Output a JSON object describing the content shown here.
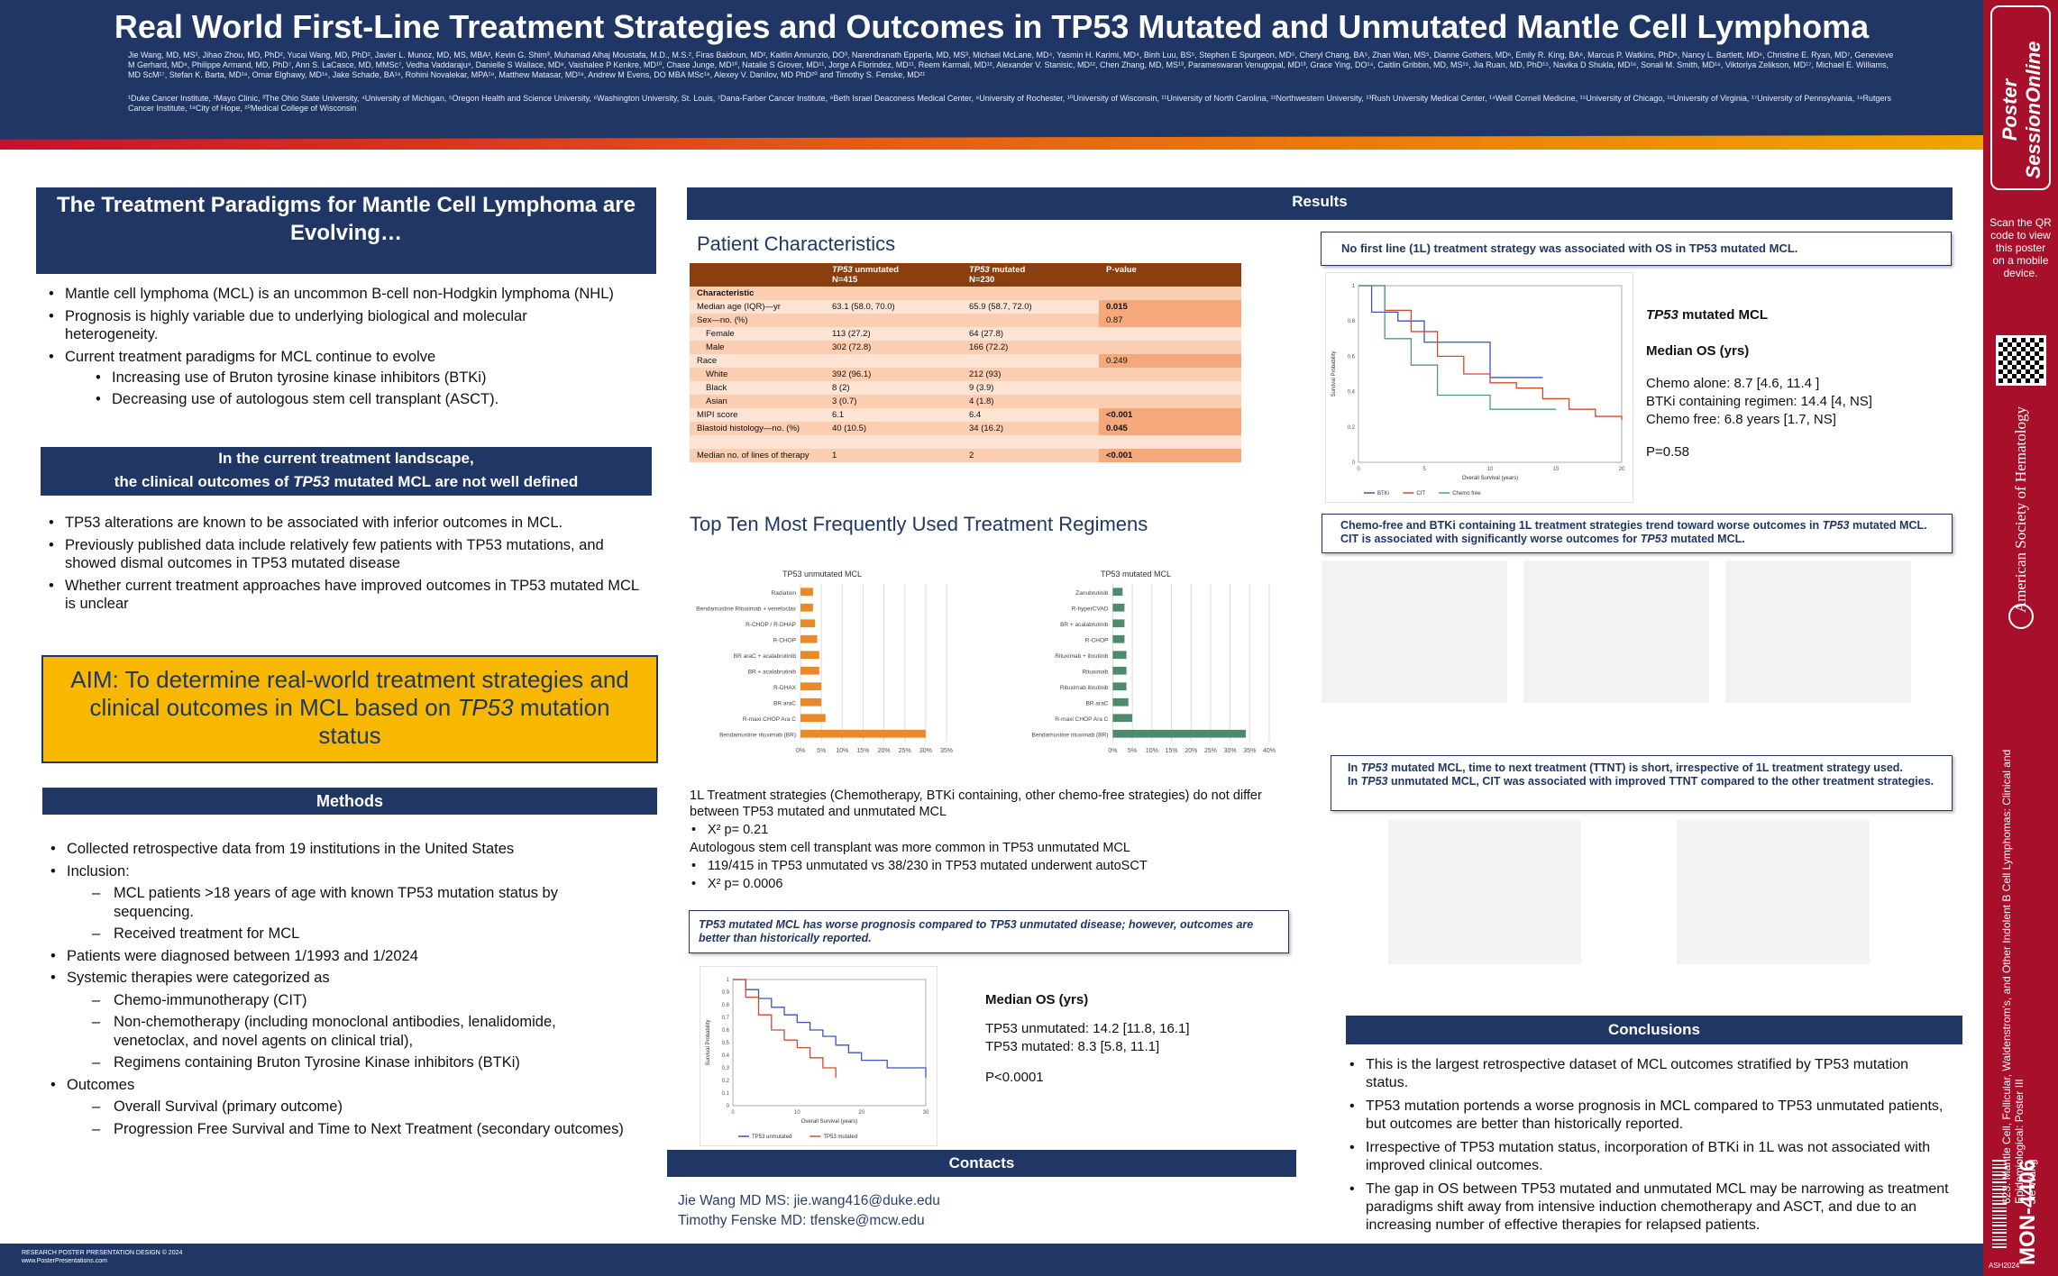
{
  "header": {
    "title": "Real World First-Line Treatment Strategies and Outcomes in TP53 Mutated and Unmutated Mantle Cell Lymphoma",
    "authors": "Jie Wang, MD, MS¹, Jihao Zhou, MD, PhD², Yucai Wang, MD, PhD², Javier L. Munoz, MD, MS, MBA², Kevin G. Shim³, Muhamad Alhaj Moustafa, M.D., M.S.², Firas Baidoun, MD², Kaitlin Annunzio, DO³, Narendranath Epperla, MD, MS³, Michael McLane, MD⁴, Yasmin H. Karimi, MD⁴, Binh Luu, BS⁵, Stephen E Spurgeon, MD⁵, Cheryl Chang, BA⁵, Zhan Wan, MS⁵, Dianne Gothers, MD⁶, Emily R. King, BA⁶, Marcus P. Watkins, PhD⁶, Nancy L. Bartlett, MD⁶, Christine E. Ryan, MD⁷, Genevieve M Gerhard, MD⁸, Philippe Armand, MD, PhD⁷, Ann S. LaCasce, MD, MMSc⁷, Vedha Vaddaraju⁹, Danielle S Wallace, MD⁹, Vaishalee P Kenkre, MD¹⁰, Chase Junge, MD¹⁰, Natalie S Grover, MD¹¹, Jorge A Florindez, MD¹¹, Reem Karmali, MD¹², Alexander V. Stanisic, MD¹², Chen Zhang, MD, MS¹³, Parameswaran Venugopal, MD¹³, Grace Ying, DO¹⁴, Caitlin Gribbin, MD, MS¹⁵, Jia Ruan, MD, PhD¹⁵, Navika D Shukla, MD¹⁶, Sonali M. Smith, MD¹⁶, Viktoriya Zelikson, MD¹⁷, Michael E. Williams, MD ScM¹⁷, Stefan K. Barta, MD¹⁸, Omar Elghawy, MD¹⁸, Jake Schade, BA¹⁹, Rohini Novalekar, MPA¹⁹, Matthew Matasar, MD¹⁹, Andrew M Evens, DO MBA MSc¹⁹, Alexey V. Danilov, MD PhD²⁰ and Timothy S. Fenske, MD²¹",
    "affiliations": "¹Duke Cancer Institute, ²Mayo Clinic, ³The Ohio State University, ⁴University of Michigan, ⁵Oregon Health and Science University, ⁶Washington University, St. Louis, ⁷Dana-Farber Cancer Institute, ⁸Beth Israel Deaconess Medical Center, ⁹University of Rochester, ¹⁰University of Wisconsin, ¹¹University of North Carolina, ¹²Northwestern University, ¹³Rush University Medical Center, ¹⁴Weill Cornell Medicine, ¹⁵University of Chicago, ¹⁶University of Virginia, ¹⁷University of Pennsylvania, ¹⁸Rutgers Cancer Institute, ¹⁹City of Hope, ²⁰Medical College of Wisconsin"
  },
  "sidebar": {
    "logo_text": "Poster SessionOnline",
    "qr_text": "Scan the QR code to view this poster on a mobile device.",
    "society": "American Society of Hematology",
    "abstract_info": "623. Mantle Cell, Follicular, Waldenstrom's, and Other Indolent B Cell Lymphomas: Clinical and Epidemiological: Poster III",
    "presenter": "Jie Wang",
    "poster_id": "MON-4406",
    "meeting": "ASH2024"
  },
  "left": {
    "paradigm_title": "The Treatment Paradigms for Mantle Cell Lymphoma are Evolving…",
    "paradigm_bullets": [
      "Mantle cell lymphoma (MCL) is an uncommon B-cell non-Hodgkin lymphoma (NHL)",
      "Prognosis is highly variable due to underlying biological and molecular heterogeneity.",
      "Current treatment paradigms for MCL continue to evolve"
    ],
    "paradigm_sub": [
      "Increasing use of Bruton tyrosine kinase inhibitors (BTKi)",
      "Decreasing use of autologous stem cell transplant (ASCT)."
    ],
    "landscape_line1": "In the current treatment landscape,",
    "landscape_line2a": "the clinical outcomes of ",
    "landscape_italic": "TP53",
    "landscape_line2b": " mutated MCL are not well defined",
    "landscape_bullets": [
      "TP53 alterations are known to be associated with inferior outcomes in MCL.",
      "Previously published data include relatively few patients with TP53 mutations, and showed dismal outcomes in TP53 mutated disease",
      "Whether current treatment approaches have improved outcomes in TP53 mutated MCL is unclear"
    ],
    "aim_a": "AIM: To determine real-world treatment strategies and clinical outcomes in MCL based on ",
    "aim_italic": "TP53",
    "aim_b": " mutation status",
    "methods_title": "Methods",
    "methods": {
      "b1": "Collected retrospective data from 19 institutions in the United States",
      "b2": "Inclusion:",
      "b2_sub1": "MCL patients >18 years of age with known TP53 mutation status by sequencing.",
      "b2_sub2": "Received treatment for MCL",
      "b3": "Patients were diagnosed between 1/1993 and 1/2024",
      "b4": "Systemic therapies were categorized as",
      "b4_sub1": "Chemo-immunotherapy (CIT)",
      "b4_sub2": "Non-chemotherapy (including monoclonal antibodies, lenalidomide, venetoclax, and novel agents on clinical trial),",
      "b4_sub3": "Regimens containing Bruton Tyrosine Kinase inhibitors (BTKi)",
      "b5": "Outcomes",
      "b5_sub1": "Overall Survival (primary outcome)",
      "b5_sub2": "Progression Free Survival and Time to Next Treatment (secondary outcomes)"
    }
  },
  "results": {
    "title": "Results",
    "pc_title": "Patient Characteristics",
    "table": {
      "headers": [
        "",
        "TP53 unmutated N=415",
        "TP53 mutated N=230",
        "P-value"
      ],
      "rows": [
        [
          "Characteristic",
          "",
          "",
          ""
        ],
        [
          "Median age (IQR)—yr",
          "63.1 (58.0, 70.0)",
          "65.9 (58.7, 72.0)",
          "0.015"
        ],
        [
          "Sex—no. (%)",
          "",
          "",
          "0.87"
        ],
        [
          "Female",
          "113 (27.2)",
          "64 (27.8)",
          ""
        ],
        [
          "Male",
          "302 (72.8)",
          "166 (72.2)",
          ""
        ],
        [
          "Race",
          "",
          "",
          "0.249"
        ],
        [
          "White",
          "392 (96.1)",
          "212 (93)",
          ""
        ],
        [
          "Black",
          "8 (2)",
          "9 (3.9)",
          ""
        ],
        [
          "Asian",
          "3 (0.7)",
          "4 (1.8)",
          ""
        ],
        [
          "MIPI score",
          "6.1",
          "6.4",
          "<0.001"
        ],
        [
          "Blastoid histology—no. (%)",
          "40 (10.5)",
          "34 (16.2)",
          "0.045"
        ],
        [
          "",
          "",
          "",
          ""
        ],
        [
          "Median no. of lines of therapy",
          "1",
          "2",
          "<0.001"
        ]
      ]
    },
    "regimens_title": "Top Ten Most Frequently Used Treatment Regimens",
    "regimen_text_1": "1L Treatment strategies (Chemotherapy, BTKi containing, other chemo-free strategies) do not differ between TP53 mutated and unmutated MCL",
    "regimen_chi1": "X² p= 0.21",
    "regimen_text_2": "Autologous stem cell transplant was more common in TP53 unmutated MCL",
    "regimen_sub_2": "119/415 in TP53 unmutated vs 38/230 in TP53 mutated underwent autoSCT",
    "regimen_chi2": "X² p= 0.0006",
    "callout_worse_a": "TP53",
    "callout_worse_b": " mutated MCL has worse prognosis compared to ",
    "callout_worse_c": "TP53",
    "callout_worse_d": " unmutated disease; however, outcomes are better than historically reported.",
    "os_overall": {
      "title": "Median OS (yrs)",
      "line1": "TP53 unmutated: 14.2 [11.8, 16.1]",
      "line2": "TP53 mutated: 8.3 [5.8, 11.1]",
      "p": "P<0.0001"
    },
    "callout_1l": "No first line (1L) treatment strategy was associated with OS in TP53 mutated MCL.",
    "os_mutated": {
      "title_italic": "TP53",
      "title_rest": " mutated MCL",
      "sub": "Median OS (yrs)",
      "line1": "Chemo alone: 8.7 [4.6, 11.4 ]",
      "line2": "BTKi containing regimen: 14.4 [4, NS]",
      "line3": "Chemo free: 6.8 years [1.7, NS]",
      "p": "P=0.58"
    },
    "callout_trend_a": "Chemo-free and BTKi containing 1L treatment strategies trend toward worse outcomes in ",
    "callout_trend_b": "TP53",
    "callout_trend_c": " mutated MCL. CIT is associated with significantly worse outcomes for ",
    "callout_trend_d": "TP53",
    "callout_trend_e": " mutated MCL.",
    "callout_ttnt_1a": "In ",
    "callout_ttnt_1b": "TP53",
    "callout_ttnt_1c": " mutated MCL, time to next treatment (TTNT) is short, irrespective of 1L treatment strategy used.",
    "callout_ttnt_2a": "In ",
    "callout_ttnt_2b": "TP53",
    "callout_ttnt_2c": " unmutated MCL, CIT was associated with improved TTNT compared to the other treatment strategies."
  },
  "contacts": {
    "title": "Contacts",
    "c1": "Jie Wang MD MS: jie.wang416@duke.edu",
    "c2": "Timothy Fenske MD: tfenske@mcw.edu"
  },
  "conclusions": {
    "title": "Conclusions",
    "bullets": [
      "This is the largest retrospective dataset of MCL outcomes stratified by TP53 mutation status.",
      "TP53 mutation portends a worse prognosis in MCL compared to TP53 unmutated patients, but outcomes are better than historically reported.",
      "Irrespective of TP53 mutation status, incorporation of BTKi in 1L was not associated with improved clinical outcomes.",
      "The gap in OS between TP53 mutated and unmutated MCL may be narrowing as treatment paradigms shift away from intensive induction chemotherapy and ASCT, and due to an increasing number of effective therapies for relapsed patients."
    ]
  },
  "footer": {
    "line1": "RESEARCH POSTER PRESENTATION DESIGN © 2024",
    "line2": "www.PosterPresentations.com"
  },
  "chart_data": [
    {
      "type": "bar",
      "title": "TP53 unmutated MCL",
      "orientation": "horizontal",
      "color": "#e8892b",
      "categories": [
        "Radiation",
        "Bendamustine Rituximab + venetoclax",
        "R-CHOP / R-DHAP",
        "R-CHOP",
        "BR araC + acalabrutinib",
        "BR + acalabrutinib",
        "R-DHAX",
        "BR araC",
        "R-maxi CHOP Ara C",
        "Bendamustine rituximab (BR)"
      ],
      "values": [
        3,
        3,
        3.5,
        4,
        4.5,
        4.5,
        5,
        5,
        6,
        30
      ],
      "xticks": [
        "0%",
        "5%",
        "10%",
        "15%",
        "20%",
        "25%",
        "30%",
        "35%"
      ],
      "xlim": [
        0,
        35
      ]
    },
    {
      "type": "bar",
      "title": "TP53 mutated MCL",
      "orientation": "horizontal",
      "color": "#4e8a6d",
      "categories": [
        "Zanubrutinib",
        "R-hyperCVAD",
        "BR + acalabrutinib",
        "R-CHOP",
        "Rituximab + ibrutinib",
        "Rituximab",
        "Rituximab ibrutinib",
        "BR araC",
        "R-maxi CHOP Ara C",
        "Bendamustine rituximab (BR)"
      ],
      "values": [
        2.5,
        3,
        3,
        3,
        3.5,
        3.5,
        3.5,
        4,
        5,
        34
      ],
      "xticks": [
        "0%",
        "5%",
        "10%",
        "15%",
        "20%",
        "25%",
        "30%",
        "35%",
        "40%"
      ],
      "xlim": [
        0,
        40
      ]
    },
    {
      "type": "line",
      "chart": "Overall survival by TP53 status",
      "xlabel": "Overall Survival (years)",
      "ylabel": "Survival Probability",
      "xticks": [
        0,
        10,
        20,
        30
      ],
      "yticks": [
        0,
        0.1,
        0.2,
        0.3,
        0.4,
        0.5,
        0.6,
        0.7,
        0.8,
        0.9,
        1.0
      ],
      "legend": [
        "TP53 unmutated",
        "TP53 mutated"
      ],
      "series": [
        {
          "name": "TP53 unmutated",
          "color": "#3a56b8",
          "x": [
            0,
            2,
            4,
            6,
            8,
            10,
            12,
            14,
            16,
            18,
            20,
            24,
            30
          ],
          "y": [
            1.0,
            0.92,
            0.85,
            0.78,
            0.72,
            0.66,
            0.6,
            0.55,
            0.48,
            0.42,
            0.36,
            0.3,
            0.22
          ]
        },
        {
          "name": "TP53 mutated",
          "color": "#d24a2e",
          "x": [
            0,
            2,
            4,
            6,
            8,
            10,
            12,
            14,
            16
          ],
          "y": [
            1.0,
            0.86,
            0.72,
            0.6,
            0.52,
            0.46,
            0.38,
            0.3,
            0.22
          ]
        }
      ]
    },
    {
      "type": "line",
      "chart": "OS in TP53 mutated MCL by 1L strategy",
      "xlabel": "Overall Survival (years)",
      "ylabel": "Survival Probability",
      "xticks": [
        0,
        5,
        10,
        15,
        20
      ],
      "yticks": [
        0,
        0.2,
        0.4,
        0.6,
        0.8,
        1.0
      ],
      "legend": [
        "BTKi",
        "CIT",
        "Chemo free"
      ],
      "series": [
        {
          "name": "BTKi",
          "color": "#3a56b8",
          "x": [
            0,
            1,
            3,
            5,
            8,
            10,
            14
          ],
          "y": [
            1.0,
            0.85,
            0.8,
            0.68,
            0.68,
            0.48,
            0.48
          ]
        },
        {
          "name": "CIT",
          "color": "#d24a2e",
          "x": [
            0,
            2,
            4,
            6,
            8,
            10,
            12,
            14,
            16,
            18,
            20
          ],
          "y": [
            1.0,
            0.86,
            0.74,
            0.6,
            0.5,
            0.45,
            0.42,
            0.36,
            0.3,
            0.26,
            0.24
          ]
        },
        {
          "name": "Chemo free",
          "color": "#4e9c7f",
          "x": [
            0,
            2,
            4,
            6,
            10,
            15
          ],
          "y": [
            1.0,
            0.7,
            0.55,
            0.38,
            0.3,
            0.3
          ]
        }
      ]
    }
  ]
}
